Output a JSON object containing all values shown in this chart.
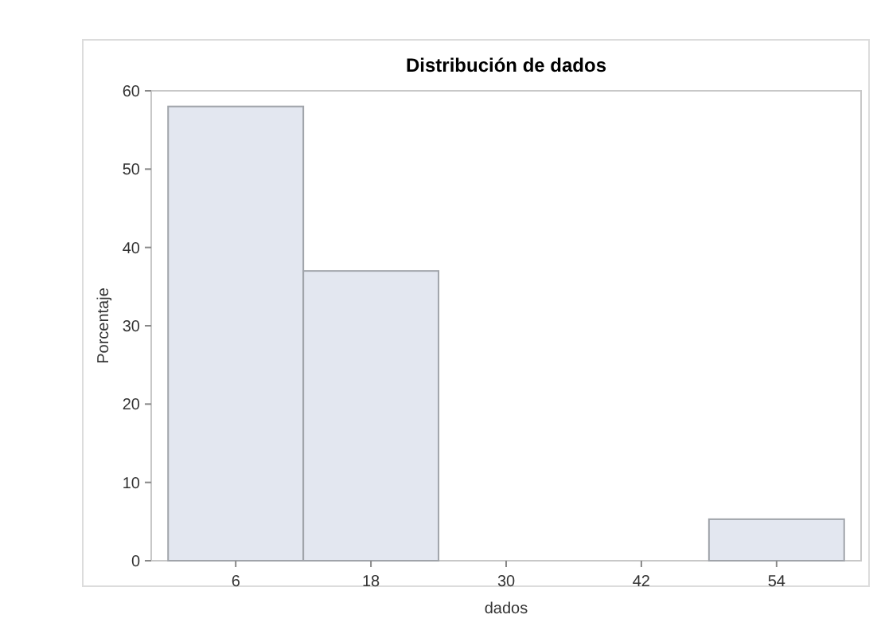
{
  "chart_data": {
    "type": "histogram",
    "title": "Distribución de dados",
    "xlabel": "dados",
    "ylabel": "Porcentaje",
    "bins": [
      0,
      12,
      24,
      36,
      48,
      60
    ],
    "values": [
      58,
      37,
      0,
      0,
      5.3
    ],
    "color": "#e3e7f0",
    "xlim": [
      -1.5,
      61.5
    ],
    "ylim": [
      0,
      60
    ],
    "xticks": [
      6,
      18,
      30,
      42,
      54
    ],
    "yticks": [
      0,
      10,
      20,
      30,
      40,
      50,
      60
    ],
    "grid": false
  }
}
